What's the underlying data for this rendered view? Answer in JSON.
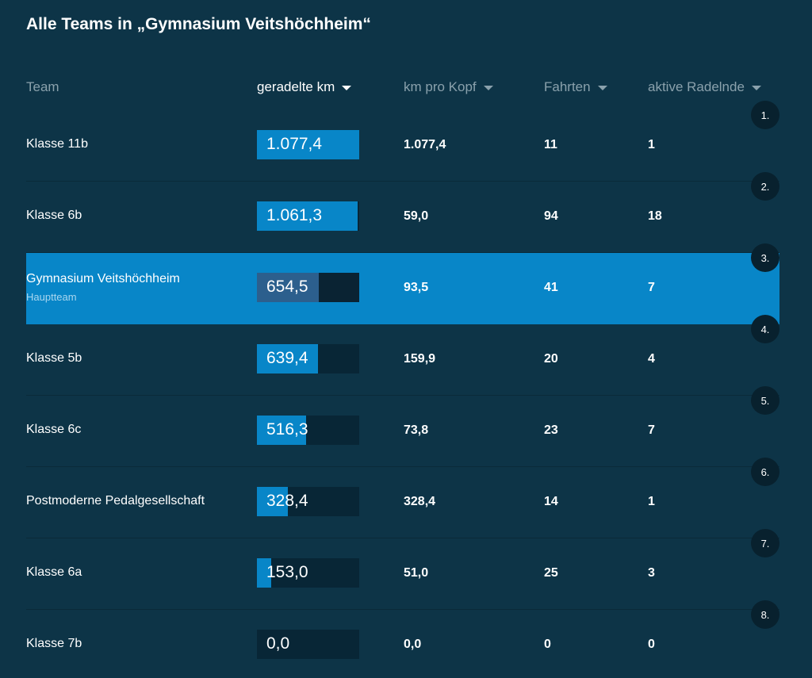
{
  "title": "Alle Teams in „Gymnasium Veitshöchheim“",
  "columns": {
    "team": "Team",
    "km": "geradelte km",
    "km_per_head": "km pro Kopf",
    "trips": "Fahrten",
    "active": "aktive Radelnde"
  },
  "colors": {
    "background": "#0d3447",
    "accent": "#0886c8",
    "highlight_row": "#0886c8"
  },
  "rows": [
    {
      "rank": "1.",
      "name": "Klasse 11b",
      "sub": "",
      "km": "1.077,4",
      "km_value": 1077.4,
      "km_per_head": "1.077,4",
      "trips": "11",
      "active": "1",
      "highlight": false
    },
    {
      "rank": "2.",
      "name": "Klasse 6b",
      "sub": "",
      "km": "1.061,3",
      "km_value": 1061.3,
      "km_per_head": "59,0",
      "trips": "94",
      "active": "18",
      "highlight": false
    },
    {
      "rank": "3.",
      "name": "Gymnasium Veitshöchheim",
      "sub": "Hauptteam",
      "km": "654,5",
      "km_value": 654.5,
      "km_per_head": "93,5",
      "trips": "41",
      "active": "7",
      "highlight": true
    },
    {
      "rank": "4.",
      "name": "Klasse 5b",
      "sub": "",
      "km": "639,4",
      "km_value": 639.4,
      "km_per_head": "159,9",
      "trips": "20",
      "active": "4",
      "highlight": false
    },
    {
      "rank": "5.",
      "name": "Klasse 6c",
      "sub": "",
      "km": "516,3",
      "km_value": 516.3,
      "km_per_head": "73,8",
      "trips": "23",
      "active": "7",
      "highlight": false
    },
    {
      "rank": "6.",
      "name": "Postmoderne Pedalgesellschaft",
      "sub": "",
      "km": "328,4",
      "km_value": 328.4,
      "km_per_head": "328,4",
      "trips": "14",
      "active": "1",
      "highlight": false
    },
    {
      "rank": "7.",
      "name": "Klasse 6a",
      "sub": "",
      "km": "153,0",
      "km_value": 153.0,
      "km_per_head": "51,0",
      "trips": "25",
      "active": "3",
      "highlight": false
    },
    {
      "rank": "8.",
      "name": "Klasse 7b",
      "sub": "",
      "km": "0,0",
      "km_value": 0.0,
      "km_per_head": "0,0",
      "trips": "0",
      "active": "0",
      "highlight": false
    }
  ]
}
